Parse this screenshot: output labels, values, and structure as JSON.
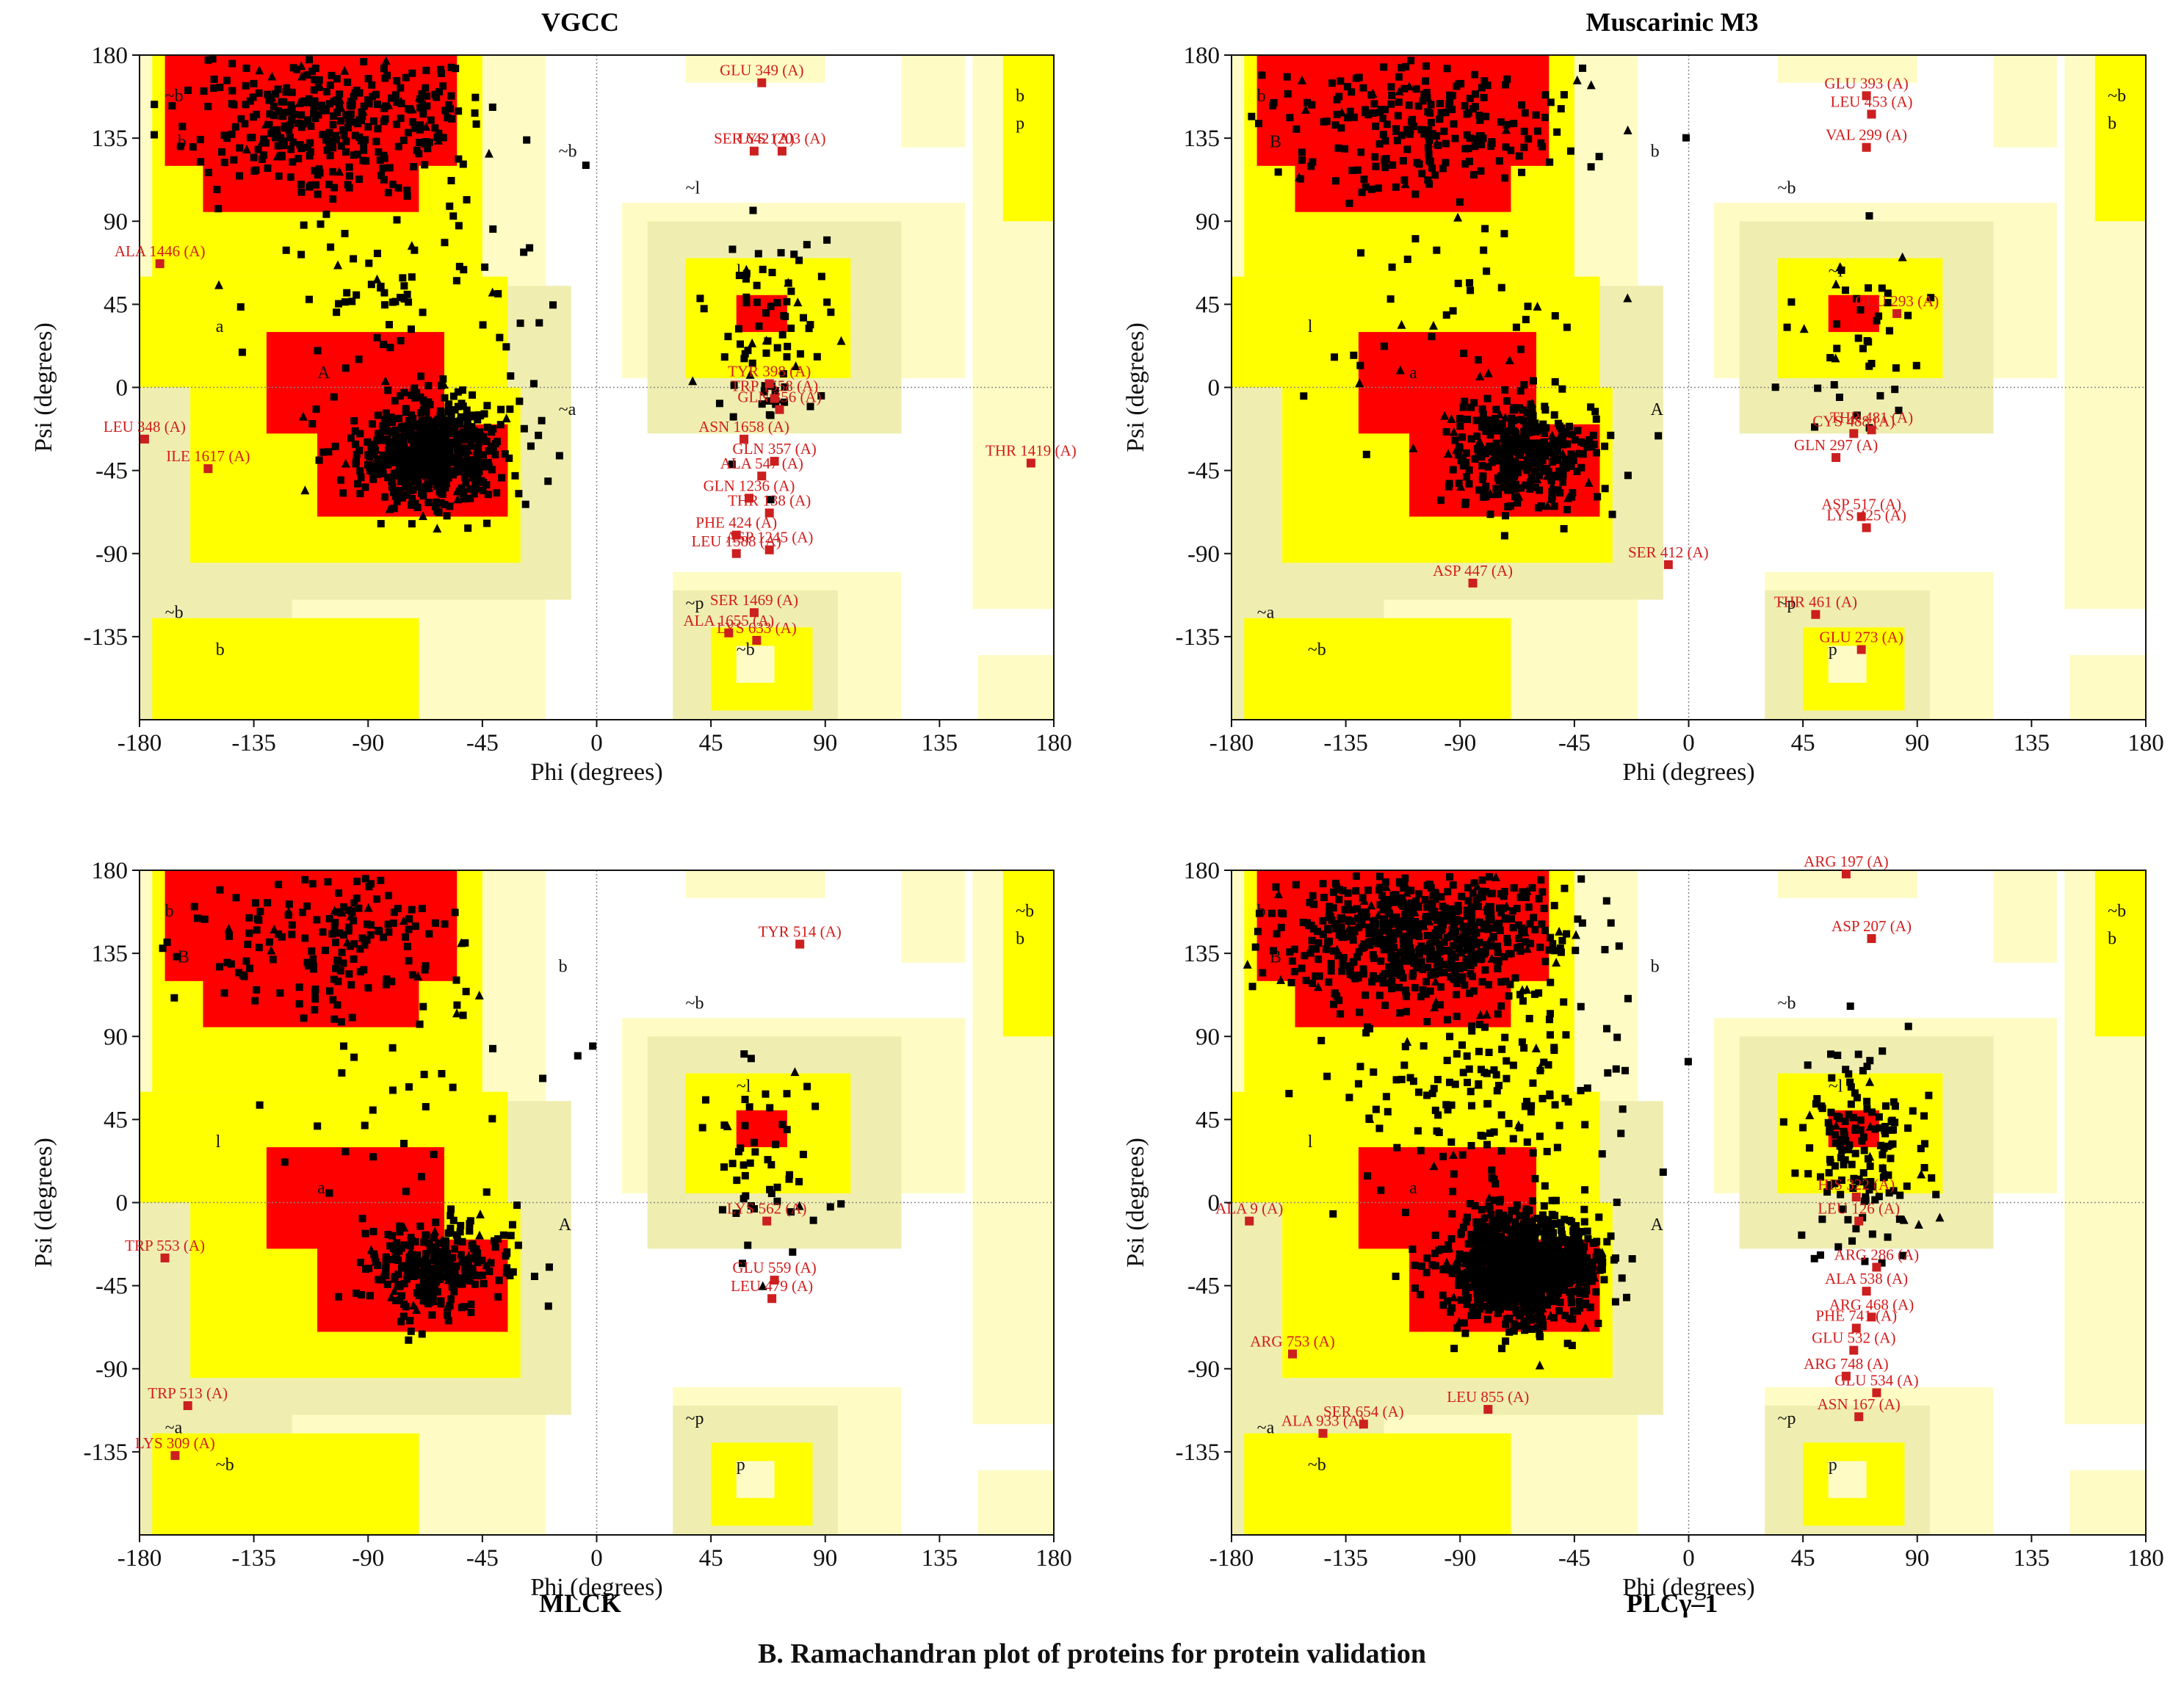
{
  "caption": "B.  Ramachandran plot of proteins for protein validation",
  "legend_colors": {
    "core": "#ff0000",
    "allowed": "#ffff00",
    "generous": "#efeeb0",
    "generous_light": "#fefcc4",
    "disallowed": "#ffffff",
    "residue": "#000000",
    "outlier": "#cc1f1f"
  },
  "chart_data": [
    {
      "type": "scatter",
      "title": "VGCC",
      "title_position": "top",
      "xlabel": "Phi (degrees)",
      "ylabel": "Psi (degrees)",
      "xlim": [
        -180,
        180
      ],
      "ylim": [
        -180,
        180
      ],
      "xticks": [
        "-180",
        "-135",
        "-90",
        "-45",
        "0",
        "45",
        "90",
        "135",
        "180"
      ],
      "yticks": [
        "180",
        "135",
        "90",
        "45",
        "0",
        "-45",
        "-90",
        "-135"
      ],
      "region_labels": [
        "b",
        "~b",
        "~l",
        "l",
        "a",
        "A",
        "~a",
        "~b",
        "b",
        "~b",
        "b",
        "p",
        "~b",
        "~p"
      ],
      "outliers": [
        {
          "label": "GLU 349 (A)",
          "phi": 65,
          "psi": 165
        },
        {
          "label": "SER 642 (A)",
          "phi": 62,
          "psi": 128
        },
        {
          "label": "LYS 1203 (A)",
          "phi": 73,
          "psi": 128
        },
        {
          "label": "ALA 1446 (A)",
          "phi": -172,
          "psi": 67
        },
        {
          "label": "TYR 398 (A)",
          "phi": 68,
          "psi": 2
        },
        {
          "label": "TRP 1558 (A)",
          "phi": 70,
          "psi": -6
        },
        {
          "label": "GLN 356 (A)",
          "phi": 72,
          "psi": -12
        },
        {
          "label": "ASN 1658 (A)",
          "phi": 58,
          "psi": -28
        },
        {
          "label": "LEU 348 (A)",
          "phi": -178,
          "psi": -28
        },
        {
          "label": "ILE 1617 (A)",
          "phi": -153,
          "psi": -44
        },
        {
          "label": "GLN 357 (A)",
          "phi": 70,
          "psi": -40
        },
        {
          "label": "ALA 547 (A)",
          "phi": 65,
          "psi": -48
        },
        {
          "label": "THR 1419 (A)",
          "phi": 171,
          "psi": -41
        },
        {
          "label": "GLN 1236 (A)",
          "phi": 60,
          "psi": -60
        },
        {
          "label": "THR 138 (A)",
          "phi": 68,
          "psi": -68
        },
        {
          "label": "PHE 424 (A)",
          "phi": 55,
          "psi": -80
        },
        {
          "label": "LEU 1588 (A)",
          "phi": 55,
          "psi": -90
        },
        {
          "label": "ASP 1245 (A)",
          "phi": 68,
          "psi": -88
        },
        {
          "label": "SER 1469 (A)",
          "phi": 62,
          "psi": -122
        },
        {
          "label": "ALA 1655 (A)",
          "phi": 52,
          "psi": -133
        },
        {
          "label": "LYS 633 (A)",
          "phi": 63,
          "psi": -137
        }
      ],
      "residues": "black squares (general) and triangles (Gly) densely clustered in core regions near (-65, -40) and (-100, 140)"
    },
    {
      "type": "scatter",
      "title": "Muscarinic M3",
      "title_position": "top",
      "xlabel": "Phi (degrees)",
      "ylabel": "Psi (degrees)",
      "xlim": [
        -180,
        180
      ],
      "ylim": [
        -180,
        180
      ],
      "xticks": [
        "-180",
        "-135",
        "-90",
        "-45",
        "0",
        "45",
        "90",
        "135",
        "180"
      ],
      "yticks": [
        "180",
        "135",
        "90",
        "45",
        "0",
        "-45",
        "-90",
        "-135"
      ],
      "region_labels": [
        "B",
        "b",
        "~b",
        "~l",
        "l",
        "a",
        "A",
        "~a",
        "~b",
        "b",
        "~b",
        "b",
        "p",
        "~p"
      ],
      "outliers": [
        {
          "label": "GLU 393 (A)",
          "phi": 70,
          "psi": 158
        },
        {
          "label": "LEU 453 (A)",
          "phi": 72,
          "psi": 148
        },
        {
          "label": "VAL 299 (A)",
          "phi": 70,
          "psi": 130
        },
        {
          "label": "GLU 293 (A)",
          "phi": 82,
          "psi": 40
        },
        {
          "label": "CYS 488 (A)",
          "phi": 65,
          "psi": -25
        },
        {
          "label": "THR 481 (A)",
          "phi": 72,
          "psi": -23
        },
        {
          "label": "GLN 297 (A)",
          "phi": 58,
          "psi": -38
        },
        {
          "label": "ASP 517 (A)",
          "phi": 68,
          "psi": -70
        },
        {
          "label": "LYS 425 (A)",
          "phi": 70,
          "psi": -76
        },
        {
          "label": "SER 412 (A)",
          "phi": -8,
          "psi": -96
        },
        {
          "label": "ASP 447 (A)",
          "phi": -85,
          "psi": -106
        },
        {
          "label": "THR 461 (A)",
          "phi": 50,
          "psi": -123
        },
        {
          "label": "GLU 273 (A)",
          "phi": 68,
          "psi": -142
        }
      ],
      "residues": "black squares (general) and triangles (Gly) densely clustered in core regions near (-65, -30) and (-100, 140)"
    },
    {
      "type": "scatter",
      "title": "MLCK",
      "title_position": "bottom",
      "xlabel": "Phi (degrees)",
      "ylabel": "Psi (degrees)",
      "xlim": [
        -180,
        180
      ],
      "ylim": [
        -180,
        180
      ],
      "xticks": [
        "-180",
        "-135",
        "-90",
        "-45",
        "0",
        "45",
        "90",
        "135",
        "180"
      ],
      "yticks": [
        "180",
        "135",
        "90",
        "45",
        "0",
        "-45",
        "-90",
        "-135"
      ],
      "region_labels": [
        "B",
        "b",
        "~b",
        "~l",
        "l",
        "a",
        "A",
        "~a",
        "~b",
        "b",
        "~b",
        "b",
        "p",
        "~p"
      ],
      "outliers": [
        {
          "label": "TYR 514 (A)",
          "phi": 80,
          "psi": 140
        },
        {
          "label": "LYS 562 (A)",
          "phi": 67,
          "psi": -10
        },
        {
          "label": "TRP 553 (A)",
          "phi": -170,
          "psi": -30
        },
        {
          "label": "GLU 559 (A)",
          "phi": 70,
          "psi": -42
        },
        {
          "label": "LEU 479 (A)",
          "phi": 69,
          "psi": -52
        },
        {
          "label": "TRP 513 (A)",
          "phi": -161,
          "psi": -110
        },
        {
          "label": "LYS 309 (A)",
          "phi": -166,
          "psi": -137
        }
      ],
      "residues": "black squares (general) and triangles (Gly) densely clustered in core regions near (-70, -30) and (-100, 140)"
    },
    {
      "type": "scatter",
      "title": "PLCγ–1",
      "title_position": "bottom",
      "xlabel": "Phi (degrees)",
      "ylabel": "Psi (degrees)",
      "xlim": [
        -180,
        180
      ],
      "ylim": [
        -180,
        180
      ],
      "xticks": [
        "-180",
        "-135",
        "-90",
        "-45",
        "0",
        "45",
        "90",
        "135",
        "180"
      ],
      "yticks": [
        "180",
        "135",
        "90",
        "45",
        "0",
        "-45",
        "-90",
        "-135"
      ],
      "region_labels": [
        "B",
        "b",
        "~b",
        "~l",
        "l",
        "a",
        "A",
        "~a",
        "~b",
        "b",
        "~b",
        "b",
        "p",
        "~p"
      ],
      "outliers": [
        {
          "label": "ARG 197 (A)",
          "phi": 62,
          "psi": 178
        },
        {
          "label": "ASP 207 (A)",
          "phi": 72,
          "psi": 143
        },
        {
          "label": "HIS 322 (A)",
          "phi": 66,
          "psi": 3
        },
        {
          "label": "LEU 126 (A)",
          "phi": 67,
          "psi": -10
        },
        {
          "label": "ALA 9 (A)",
          "phi": -173,
          "psi": -10
        },
        {
          "label": "ARG 286 (A)",
          "phi": 74,
          "psi": -35
        },
        {
          "label": "ALA 538 (A)",
          "phi": 70,
          "psi": -48
        },
        {
          "label": "ARG 468 (A)",
          "phi": 72,
          "psi": -62
        },
        {
          "label": "PHE 741 (A)",
          "phi": 66,
          "psi": -68
        },
        {
          "label": "GLU 532 (A)",
          "phi": 65,
          "psi": -80
        },
        {
          "label": "ARG 753 (A)",
          "phi": -156,
          "psi": -82
        },
        {
          "label": "ARG 748 (A)",
          "phi": 62,
          "psi": -94
        },
        {
          "label": "GLU 534 (A)",
          "phi": 74,
          "psi": -103
        },
        {
          "label": "ASN 167 (A)",
          "phi": 67,
          "psi": -116
        },
        {
          "label": "LEU 855 (A)",
          "phi": -79,
          "psi": -112
        },
        {
          "label": "SER 654 (A)",
          "phi": -128,
          "psi": -120
        },
        {
          "label": "ALA 933 (A)",
          "phi": -144,
          "psi": -125
        }
      ],
      "residues": "black squares (general) and triangles (Gly) very densely clustered in core regions near (-65, -30) and (-100, 140)"
    }
  ]
}
